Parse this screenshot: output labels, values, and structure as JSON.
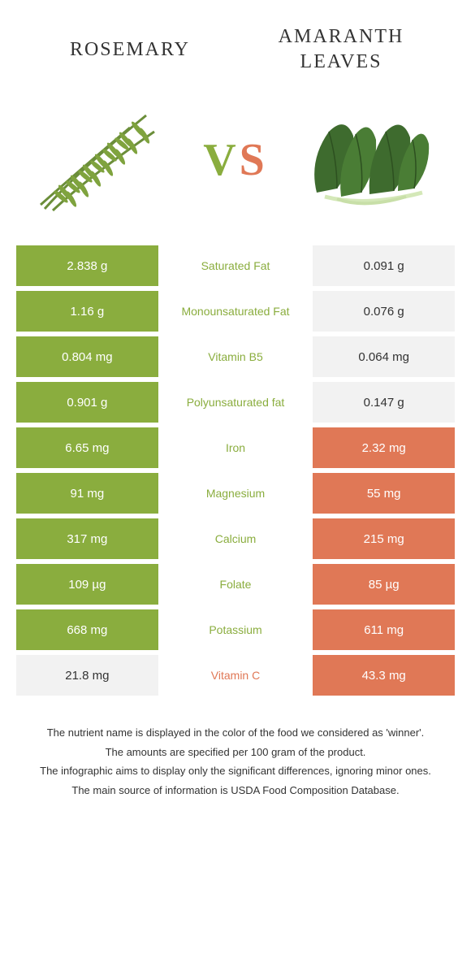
{
  "header": {
    "left_title": "Rosemary",
    "right_title": "Amaranth Leaves",
    "vs_v": "V",
    "vs_s": "S"
  },
  "colors": {
    "green": "#8aad3e",
    "orange": "#e07856",
    "neutral": "#f2f2f2",
    "white": "#ffffff"
  },
  "rows": [
    {
      "left": "2.838 g",
      "mid": "Saturated Fat",
      "right": "0.091 g",
      "winner": "left",
      "left_bg": "green",
      "right_bg": "neutral"
    },
    {
      "left": "1.16 g",
      "mid": "Monounsaturated Fat",
      "right": "0.076 g",
      "winner": "left",
      "left_bg": "green",
      "right_bg": "neutral"
    },
    {
      "left": "0.804 mg",
      "mid": "Vitamin B5",
      "right": "0.064 mg",
      "winner": "left",
      "left_bg": "green",
      "right_bg": "neutral"
    },
    {
      "left": "0.901 g",
      "mid": "Polyunsaturated fat",
      "right": "0.147 g",
      "winner": "left",
      "left_bg": "green",
      "right_bg": "neutral"
    },
    {
      "left": "6.65 mg",
      "mid": "Iron",
      "right": "2.32 mg",
      "winner": "left",
      "left_bg": "green",
      "right_bg": "orange"
    },
    {
      "left": "91 mg",
      "mid": "Magnesium",
      "right": "55 mg",
      "winner": "left",
      "left_bg": "green",
      "right_bg": "orange"
    },
    {
      "left": "317 mg",
      "mid": "Calcium",
      "right": "215 mg",
      "winner": "left",
      "left_bg": "green",
      "right_bg": "orange"
    },
    {
      "left": "109 µg",
      "mid": "Folate",
      "right": "85 µg",
      "winner": "left",
      "left_bg": "green",
      "right_bg": "orange"
    },
    {
      "left": "668 mg",
      "mid": "Potassium",
      "right": "611 mg",
      "winner": "left",
      "left_bg": "green",
      "right_bg": "orange"
    },
    {
      "left": "21.8 mg",
      "mid": "Vitamin C",
      "right": "43.3 mg",
      "winner": "right",
      "left_bg": "neutral",
      "right_bg": "orange"
    }
  ],
  "footer": {
    "line1": "The nutrient name is displayed in the color of the food we considered as 'winner'.",
    "line2": "The amounts are specified per 100 gram of the product.",
    "line3": "The infographic aims to display only the significant differences, ignoring minor ones.",
    "line4": "The main source of information is USDA Food Composition Database."
  }
}
